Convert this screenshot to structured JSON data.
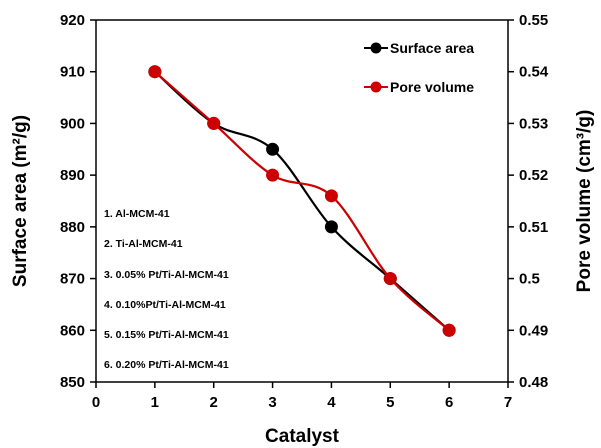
{
  "chart_data": {
    "type": "line",
    "xlabel": "Catalyst",
    "ylabel_left": "Surface area (m²/g)",
    "ylabel_right": "Pore volume (cm³/g)",
    "xlim": [
      0,
      7
    ],
    "ylim_left": [
      850,
      920
    ],
    "ylim_right": [
      0.48,
      0.55
    ],
    "x_ticks": [
      "0",
      "1",
      "2",
      "3",
      "4",
      "5",
      "6",
      "7"
    ],
    "y_left_ticks": [
      "850",
      "860",
      "870",
      "880",
      "890",
      "900",
      "910",
      "920"
    ],
    "y_right_ticks": [
      "0.48",
      "0.49",
      "0.5",
      "0.51",
      "0.52",
      "0.53",
      "0.54",
      "0.55"
    ],
    "grid": false,
    "legend_position": "top-right",
    "series": [
      {
        "name": "Surface area",
        "axis": "left",
        "color": "#000000",
        "x": [
          1,
          2,
          3,
          4,
          5,
          6
        ],
        "values": [
          910,
          900,
          895,
          880,
          870,
          860
        ]
      },
      {
        "name": "Pore volume",
        "axis": "right",
        "color": "#cc0000",
        "x": [
          1,
          2,
          3,
          4,
          5,
          6
        ],
        "values": [
          0.54,
          0.53,
          0.52,
          0.516,
          0.5,
          0.49
        ]
      }
    ],
    "annotations": [
      "1.  Al-MCM-41",
      "2.  Ti-Al-MCM-41",
      "3.  0.05% Pt/Ti-Al-MCM-41",
      "4.  0.10%Pt/Ti-Al-MCM-41",
      "5.  0.15% Pt/Ti-Al-MCM-41",
      "6.  0.20% Pt/Ti-Al-MCM-41"
    ]
  }
}
